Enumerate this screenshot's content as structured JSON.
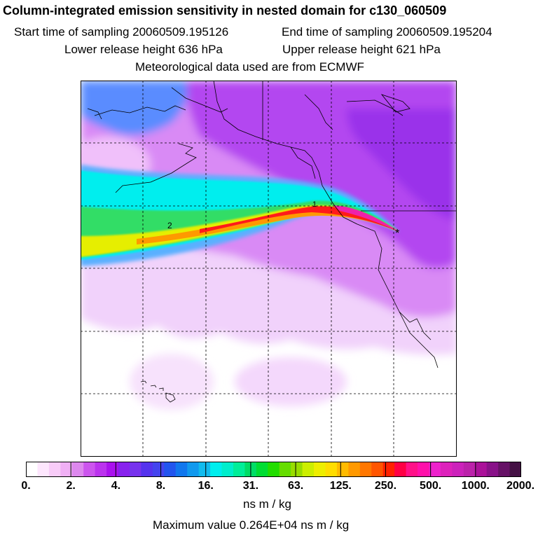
{
  "header": {
    "title": "Column-integrated emission sensitivity in nested domain for c130_060509",
    "start_time": "Start time of sampling 20060509.195126",
    "end_time": "End time of sampling 20060509.195204",
    "lower_release": "Lower release height  636 hPa",
    "upper_release": "Upper release height  621 hPa",
    "meteorology": "Meteorological data used are from ECMWF"
  },
  "map": {
    "plume_labels": [
      "1",
      "2"
    ],
    "release_marker": "*",
    "colors": {
      "background_low": "#f4dcff",
      "background_mid": "#cc66ff",
      "background_high": "#9b33ee",
      "coast": "#000000",
      "grid": "#000000"
    }
  },
  "colorbar": {
    "tick_labels": [
      "0.",
      "2.",
      "4.",
      "8.",
      "16.",
      "31.",
      "63.",
      "125.",
      "250.",
      "500.",
      "1000.",
      "2000."
    ],
    "colors": [
      "#ffffff",
      "#fde6fd",
      "#f8ccf8",
      "#f0b0f5",
      "#dd88ee",
      "#cc55ee",
      "#bb33ee",
      "#aa11ee",
      "#8822ee",
      "#7733ee",
      "#5533ee",
      "#4444ee",
      "#2255ee",
      "#1177ee",
      "#1199ee",
      "#11bbee",
      "#00eeee",
      "#00eecc",
      "#00ee99",
      "#00dd66",
      "#00dd33",
      "#22dd00",
      "#66dd00",
      "#99dd00",
      "#ccee00",
      "#eeee00",
      "#ffdd00",
      "#ffbb00",
      "#ff9900",
      "#ff7700",
      "#ff5500",
      "#ff2200",
      "#ff0044",
      "#ff1188",
      "#ff11aa",
      "#ee22cc",
      "#dd22bb",
      "#cc22bb",
      "#bb22aa",
      "#aa1199",
      "#881188",
      "#661166",
      "#441144"
    ],
    "units": "ns m / kg"
  },
  "footer": {
    "max_value": "Maximum value  0.264E+04 ns m / kg"
  }
}
